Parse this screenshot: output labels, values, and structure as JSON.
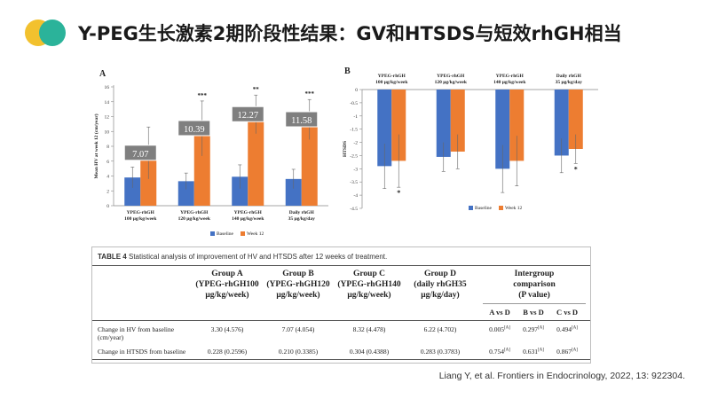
{
  "header": {
    "title": "Y-PEG生长激素2期阶段性结果：GV和HTSDS与短效rhGH相当"
  },
  "colors": {
    "baseline": "#4472c4",
    "week12": "#ed7d31",
    "annotation_box": "#7f7f7f"
  },
  "chart_data": [
    {
      "panel": "A",
      "type": "bar",
      "ylabel": "Mean HV at week 12 (cm/year)",
      "ylim": [
        0,
        16
      ],
      "yticks": [
        0,
        2,
        4,
        6,
        8,
        10,
        12,
        14,
        16
      ],
      "categories": [
        [
          "YPEG-rhGH",
          "100 μg/kg/week"
        ],
        [
          "YPEG-rhGH",
          "120 μg/kg/week"
        ],
        [
          "YPEG-rhGH",
          "140 μg/kg/week"
        ],
        [
          "Daily rhGH",
          "35 μg/kg/day"
        ]
      ],
      "series": [
        {
          "name": "Baseline",
          "values": [
            3.8,
            3.3,
            3.9,
            3.6
          ],
          "err": [
            1.4,
            1.1,
            1.6,
            1.3
          ]
        },
        {
          "name": "Week 12",
          "values": [
            7.1,
            10.4,
            12.3,
            11.6
          ],
          "err": [
            3.5,
            3.7,
            2.6,
            2.7
          ]
        }
      ],
      "significance": [
        "",
        "***",
        "**",
        "***"
      ],
      "annotations": [
        "7.07",
        "10.39",
        "12.27",
        "11.58"
      ],
      "legend": "bottom"
    },
    {
      "panel": "B",
      "type": "bar",
      "ylabel": "HTSDS",
      "ylim": [
        -4.5,
        0
      ],
      "yticks": [
        0,
        -0.5,
        -1,
        -1.5,
        -2,
        -2.5,
        -3,
        -3.5,
        -4,
        -4.5
      ],
      "categories": [
        [
          "YPEG-rhGH",
          "100 μg/kg/week"
        ],
        [
          "YPEG-rhGH",
          "120 μg/kg/week"
        ],
        [
          "YPEG-rhGH",
          "140 μg/kg/week"
        ],
        [
          "Daily rhGH",
          "35 μg/kg/day"
        ]
      ],
      "series": [
        {
          "name": "Baseline",
          "values": [
            -2.9,
            -2.55,
            -3.0,
            -2.5
          ],
          "err": [
            0.85,
            0.55,
            0.9,
            0.65
          ]
        },
        {
          "name": "Week 12",
          "values": [
            -2.7,
            -2.35,
            -2.7,
            -2.25
          ],
          "err": [
            1.0,
            0.65,
            0.95,
            0.55
          ]
        }
      ],
      "significance": [
        "*",
        "",
        "",
        "*"
      ],
      "legend": "bottom"
    }
  ],
  "table": {
    "number": "TABLE 4",
    "caption": "Statistical analysis of improvement of HV and HTSDS after 12 weeks of treatment.",
    "headers": [
      [
        "Group A",
        "(YPEG-rhGH100",
        "μg/kg/week)"
      ],
      [
        "Group B",
        "(YPEG-rhGH120",
        "μg/kg/week)"
      ],
      [
        "Group C",
        "(YPEG-rhGH140",
        "μg/kg/week)"
      ],
      [
        "Group D",
        "(daily rhGH35",
        "μg/kg/day)"
      ],
      [
        "Intergroup",
        "comparison",
        "(P value)"
      ]
    ],
    "subheaders": [
      "A vs D",
      "B vs D",
      "C vs D"
    ],
    "rows": [
      {
        "label": [
          "Change in HV from baseline",
          "(cm/year)"
        ],
        "values": [
          "3.30 (4.576)",
          "7.07 (4.054)",
          "8.32 (4.478)",
          "6.22 (4.702)"
        ],
        "p": [
          "0.005",
          "0.297",
          "0.494"
        ],
        "sup": "[A]"
      },
      {
        "label": [
          "Change in HTSDS from baseline",
          ""
        ],
        "values": [
          "0.228 (0.2596)",
          "0.210 (0.3385)",
          "0.304 (0.4388)",
          "0.283 (0.3783)"
        ],
        "p": [
          "0.754",
          "0.631",
          "0.867"
        ],
        "sup": "[A]"
      }
    ]
  },
  "citation": "Liang Y, et al. Frontiers in Endocrinology, 2022, 13: 922304."
}
